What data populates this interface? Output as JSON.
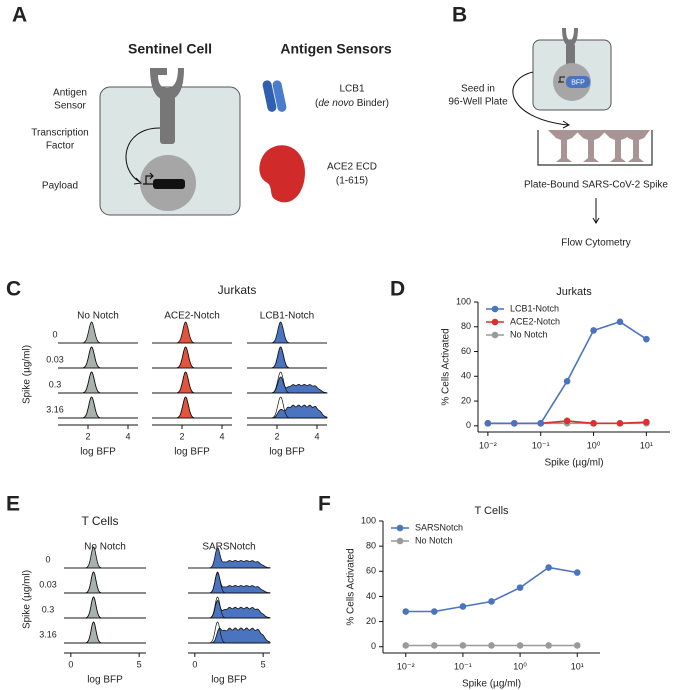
{
  "panel_labels": [
    "A",
    "B",
    "C",
    "D",
    "E",
    "F"
  ],
  "A": {
    "title_cell": "Sentinel Cell",
    "title_sensors": "Antigen Sensors",
    "annotations": [
      [
        "Antigen",
        "Sensor"
      ],
      [
        "Transcription",
        "Factor"
      ],
      [
        "Payload"
      ]
    ],
    "sensors": [
      {
        "name": "LCB1",
        "note": [
          "(",
          "de novo",
          " Binder)"
        ]
      },
      {
        "name": "ACE2 ECD",
        "note": [
          "(1-615)"
        ]
      }
    ]
  },
  "B": {
    "reporter": "BFP",
    "seed": [
      "Seed in",
      "96-Well Plate"
    ],
    "plate": "Plate-Bound SARS-CoV-2 Spike",
    "readout": "Flow Cytometry"
  },
  "C": {
    "title": "Jurkats",
    "columns": [
      "No Notch",
      "ACE2-Notch",
      "LCB1-Notch"
    ],
    "row_axis_label": "Spike (µg/ml)",
    "rows": [
      "0",
      "0.03",
      "0.3",
      "3.16"
    ],
    "xlim": [
      0.5,
      4.5
    ],
    "xticks": [
      2,
      4
    ],
    "xlabel": "log BFP"
  },
  "E": {
    "title": "T Cells",
    "columns": [
      "No Notch",
      "SARSNotch"
    ],
    "row_axis_label": "Spike (µg/ml)",
    "rows": [
      "0",
      "0.03",
      "0.3",
      "3.16"
    ],
    "xlim": [
      -0.5,
      5.5
    ],
    "xticks": [
      0,
      5
    ],
    "xlabel": "log BFP"
  },
  "chart_data": [
    {
      "type": "line",
      "title": "Jurkats",
      "x_label": "Spike (µg/ml)",
      "y_label": "% Cells Activated",
      "xscale": "log",
      "x": [
        0.01,
        0.0316,
        0.1,
        0.316,
        1,
        3.16,
        10
      ],
      "series": [
        {
          "name": "LCB1-Notch",
          "color": "#4a74c0",
          "values": [
            2,
            2,
            2,
            36,
            77,
            84,
            70
          ]
        },
        {
          "name": "ACE2-Notch",
          "color": "#d93030",
          "values": [
            2,
            2,
            2,
            4,
            2,
            2,
            3
          ]
        },
        {
          "name": "No Notch",
          "color": "#9a9a9a",
          "values": [
            2,
            2,
            2,
            2,
            2,
            2,
            2
          ]
        }
      ],
      "xlim": [
        0.0065,
        28
      ],
      "ylim": [
        -5,
        100
      ],
      "xticks": [
        {
          "value": 0.01,
          "label": "10⁻²"
        },
        {
          "value": 0.1,
          "label": "10⁻¹"
        },
        {
          "value": 1,
          "label": "10⁰"
        },
        {
          "value": 10,
          "label": "10¹"
        }
      ],
      "yticks": [
        0,
        20,
        40,
        60,
        80,
        100
      ],
      "legend": "upper left"
    },
    {
      "type": "line",
      "title": "T Cells",
      "x_label": "Spike (µg/ml)",
      "y_label": "% Cells Activated",
      "xscale": "log",
      "x": [
        0.01,
        0.0316,
        0.1,
        0.316,
        1,
        3.16,
        10
      ],
      "series": [
        {
          "name": "SARSNotch",
          "color": "#4a74c0",
          "values": [
            28,
            28,
            32,
            36,
            47,
            63,
            59
          ]
        },
        {
          "name": "No Notch",
          "color": "#9a9a9a",
          "values": [
            1,
            1,
            1,
            1,
            1,
            1,
            1
          ]
        }
      ],
      "xlim": [
        0.004,
        25
      ],
      "ylim": [
        -5,
        100
      ],
      "xticks": [
        {
          "value": 0.01,
          "label": "10⁻²"
        },
        {
          "value": 0.1,
          "label": "10⁻¹"
        },
        {
          "value": 1,
          "label": "10⁰"
        },
        {
          "value": 10,
          "label": "10¹"
        }
      ],
      "yticks": [
        0,
        20,
        40,
        60,
        80,
        100
      ],
      "legend": "upper left"
    }
  ]
}
